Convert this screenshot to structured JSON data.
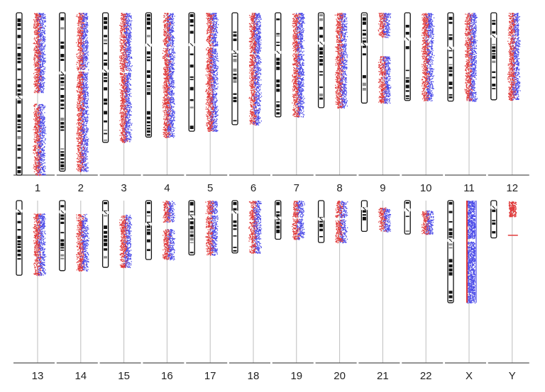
{
  "title": "",
  "colors": {
    "series_a": "#e03b3b",
    "series_b": "#4a4ae8",
    "ideogram": "#111111",
    "axis": "#bdbdbd"
  },
  "chart_data": {
    "type": "scatter",
    "description_source": "genome-wide karyogram of allele signal per chromosome",
    "rows": [
      {
        "chromosomes": [
          {
            "label": "1",
            "length": 248,
            "centromere": 0.52,
            "gaps": [
              [
                0.49,
                0.56
              ]
            ]
          },
          {
            "label": "2",
            "length": 242,
            "centromere": 0.38,
            "gaps": [
              [
                0.36,
                0.37
              ]
            ]
          },
          {
            "label": "3",
            "length": 198,
            "centromere": 0.45,
            "gaps": [
              [
                0.45,
                0.46
              ]
            ]
          },
          {
            "label": "4",
            "length": 190,
            "centromere": 0.26,
            "gaps": [
              [
                0.27,
                0.28
              ]
            ]
          },
          {
            "label": "5",
            "length": 181,
            "centromere": 0.27,
            "gaps": [
              [
                0.28,
                0.29
              ]
            ]
          },
          {
            "label": "6",
            "length": 171,
            "centromere": 0.35,
            "gaps": [
              [
                0.36,
                0.37
              ]
            ]
          },
          {
            "label": "7",
            "length": 159,
            "centromere": 0.38,
            "gaps": [
              [
                0.38,
                0.39
              ]
            ]
          },
          {
            "label": "8",
            "length": 145,
            "centromere": 0.32,
            "gaps": [
              [
                0.31,
                0.32
              ]
            ]
          },
          {
            "label": "9",
            "length": 138,
            "centromere": 0.35,
            "gaps": [
              [
                0.27,
                0.48
              ]
            ]
          },
          {
            "label": "10",
            "length": 134,
            "centromere": 0.3,
            "gaps": [
              [
                0.29,
                0.3
              ]
            ]
          },
          {
            "label": "11",
            "length": 135,
            "centromere": 0.4,
            "gaps": [
              [
                0.38,
                0.39
              ]
            ]
          },
          {
            "label": "12",
            "length": 133,
            "centromere": 0.27,
            "gaps": [
              [
                0.27,
                0.28
              ]
            ]
          }
        ]
      },
      {
        "chromosomes": [
          {
            "label": "13",
            "length": 114,
            "centromere": 0.14,
            "gaps": [
              [
                0.0,
                0.17
              ]
            ]
          },
          {
            "label": "14",
            "length": 107,
            "centromere": 0.16,
            "gaps": [
              [
                0.0,
                0.19
              ]
            ]
          },
          {
            "label": "15",
            "length": 102,
            "centromere": 0.18,
            "gaps": [
              [
                0.0,
                0.21
              ]
            ]
          },
          {
            "label": "16",
            "length": 90,
            "centromere": 0.4,
            "gaps": [
              [
                0.36,
                0.48
              ]
            ]
          },
          {
            "label": "17",
            "length": 83,
            "centromere": 0.3,
            "gaps": [
              [
                0.24,
                0.27
              ]
            ]
          },
          {
            "label": "18",
            "length": 80,
            "centromere": 0.22,
            "gaps": []
          },
          {
            "label": "19",
            "length": 59,
            "centromere": 0.45,
            "gaps": [
              [
                0.42,
                0.46
              ]
            ]
          },
          {
            "label": "20",
            "length": 64,
            "centromere": 0.44,
            "gaps": [
              [
                0.4,
                0.44
              ]
            ]
          },
          {
            "label": "21",
            "length": 47,
            "centromere": 0.26,
            "gaps": [
              [
                0.0,
                0.22
              ]
            ]
          },
          {
            "label": "22",
            "length": 51,
            "centromere": 0.28,
            "gaps": [
              [
                0.0,
                0.29
              ]
            ]
          },
          {
            "label": "X",
            "length": 156,
            "centromere": 0.39,
            "gaps": [
              [
                0.37,
                0.4
              ]
            ],
            "hemizygous": true
          },
          {
            "label": "Y",
            "length": 57,
            "centromere": 0.18,
            "gaps": [
              [
                0.0,
                0.02
              ]
            ],
            "y_mode": true
          }
        ]
      }
    ],
    "series": [
      {
        "color": "#e03b3b"
      },
      {
        "color": "#4a4ae8"
      }
    ],
    "grid": false
  }
}
